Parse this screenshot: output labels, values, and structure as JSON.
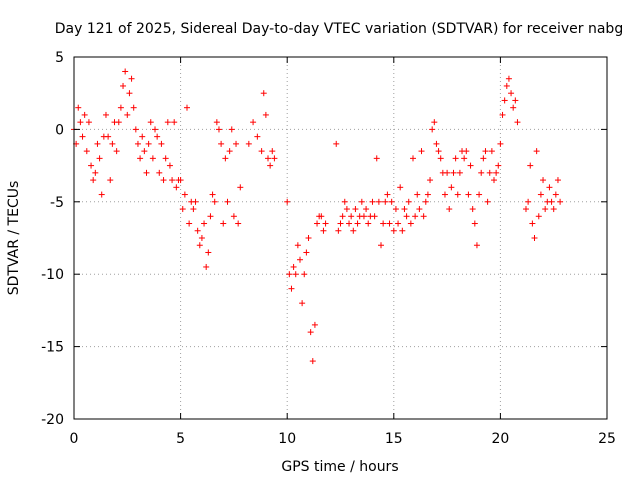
{
  "chart_data": {
    "type": "scatter",
    "title": "Day 121 of 2025, Sidereal Day-to-day VTEC variation (SDTVAR) for receiver nabg",
    "xlabel": "GPS time / hours",
    "ylabel": "SDTVAR / TECUs",
    "xlim": [
      0,
      25
    ],
    "ylim": [
      -20,
      5
    ],
    "xticks": [
      0,
      5,
      10,
      15,
      20,
      25
    ],
    "yticks": [
      -20,
      -15,
      -10,
      -5,
      0,
      5
    ],
    "xtick_labels": [
      "0",
      "5",
      "10",
      "15",
      "20",
      "25"
    ],
    "ytick_labels": [
      "-20",
      "-15",
      "-10",
      "-5",
      "0",
      "5"
    ],
    "grid": true,
    "marker": "+",
    "color": "#ff0000",
    "series": [
      {
        "name": "SDTVAR",
        "x": [
          0.0,
          0.1,
          0.2,
          0.3,
          0.4,
          0.5,
          0.6,
          0.7,
          0.8,
          0.9,
          1.0,
          1.1,
          1.2,
          1.3,
          1.4,
          1.5,
          1.6,
          1.7,
          1.8,
          1.9,
          2.0,
          2.1,
          2.2,
          2.3,
          2.4,
          2.5,
          2.6,
          2.7,
          2.8,
          2.9,
          3.0,
          3.1,
          3.2,
          3.3,
          3.4,
          3.5,
          3.6,
          3.7,
          3.8,
          3.9,
          4.0,
          4.1,
          4.2,
          4.3,
          4.4,
          4.5,
          4.6,
          4.7,
          4.8,
          4.9,
          5.0,
          5.1,
          5.2,
          5.3,
          5.4,
          5.5,
          5.6,
          5.7,
          5.8,
          5.9,
          6.0,
          6.1,
          6.2,
          6.3,
          6.4,
          6.5,
          6.6,
          6.7,
          6.8,
          6.9,
          7.0,
          7.1,
          7.2,
          7.3,
          7.4,
          7.5,
          7.6,
          7.7,
          7.8,
          8.2,
          8.4,
          8.6,
          8.8,
          8.9,
          9.0,
          9.1,
          9.2,
          9.3,
          9.4,
          10.0,
          10.1,
          10.2,
          10.3,
          10.4,
          10.5,
          10.6,
          10.7,
          10.8,
          10.9,
          11.0,
          11.1,
          11.2,
          11.3,
          11.4,
          11.5,
          11.6,
          11.7,
          11.8,
          12.3,
          12.4,
          12.5,
          12.6,
          12.7,
          12.8,
          12.9,
          13.0,
          13.1,
          13.2,
          13.3,
          13.4,
          13.5,
          13.6,
          13.7,
          13.8,
          13.9,
          14.0,
          14.1,
          14.2,
          14.3,
          14.4,
          14.5,
          14.6,
          14.7,
          14.8,
          14.9,
          15.0,
          15.1,
          15.2,
          15.3,
          15.4,
          15.5,
          15.6,
          15.7,
          15.8,
          15.9,
          16.0,
          16.1,
          16.2,
          16.3,
          16.4,
          16.5,
          16.6,
          16.7,
          16.8,
          16.9,
          17.0,
          17.1,
          17.2,
          17.3,
          17.4,
          17.5,
          17.6,
          17.7,
          17.8,
          17.9,
          18.0,
          18.1,
          18.2,
          18.3,
          18.4,
          18.5,
          18.6,
          18.7,
          18.8,
          18.9,
          19.0,
          19.1,
          19.2,
          19.3,
          19.4,
          19.5,
          19.6,
          19.7,
          19.8,
          19.9,
          20.0,
          20.1,
          20.2,
          20.3,
          20.4,
          20.5,
          20.6,
          20.7,
          20.8,
          21.2,
          21.3,
          21.4,
          21.5,
          21.6,
          21.7,
          21.8,
          21.9,
          22.0,
          22.1,
          22.2,
          22.3,
          22.4,
          22.5,
          22.6,
          22.7,
          22.8
        ],
        "y": [
          0.0,
          -1.0,
          1.5,
          0.5,
          -0.5,
          1.0,
          -1.5,
          0.5,
          -2.5,
          -3.5,
          -3.0,
          -1.0,
          -2.0,
          -4.5,
          -0.5,
          1.0,
          -0.5,
          -3.5,
          -1.0,
          0.5,
          -1.5,
          0.5,
          1.5,
          3.0,
          4.0,
          1.0,
          2.5,
          3.5,
          1.5,
          0.0,
          -1.0,
          -2.0,
          -0.5,
          -1.5,
          -3.0,
          -1.0,
          0.5,
          -2.0,
          0.0,
          -0.5,
          -3.0,
          -1.0,
          -3.5,
          -2.0,
          0.5,
          -2.5,
          -3.5,
          0.5,
          -4.0,
          -3.5,
          -3.5,
          -5.5,
          -4.5,
          1.5,
          -6.5,
          -5.0,
          -5.5,
          -5.0,
          -7.0,
          -8.0,
          -7.5,
          -6.5,
          -9.5,
          -8.5,
          -6.0,
          -4.5,
          -5.0,
          0.5,
          0.0,
          -1.0,
          -6.5,
          -2.0,
          -5.0,
          -1.5,
          0.0,
          -6.0,
          -1.0,
          -6.5,
          -4.0,
          -1.0,
          0.5,
          -0.5,
          -1.5,
          2.5,
          1.0,
          -2.0,
          -2.5,
          -1.5,
          -2.0,
          -5.0,
          -10.0,
          -11.0,
          -9.5,
          -10.0,
          -8.0,
          -9.0,
          -12.0,
          -10.0,
          -8.5,
          -7.5,
          -14.0,
          -16.0,
          -13.5,
          -6.5,
          -6.0,
          -6.0,
          -7.0,
          -6.5,
          -1.0,
          -7.0,
          -6.5,
          -6.0,
          -5.0,
          -5.5,
          -6.5,
          -6.0,
          -7.0,
          -5.5,
          -6.5,
          -6.0,
          -5.0,
          -6.0,
          -5.5,
          -6.5,
          -6.0,
          -5.0,
          -6.0,
          -2.0,
          -5.0,
          -8.0,
          -6.5,
          -5.0,
          -4.5,
          -6.5,
          -5.0,
          -7.0,
          -5.5,
          -6.5,
          -4.0,
          -7.0,
          -5.5,
          -6.0,
          -5.0,
          -6.5,
          -2.0,
          -6.0,
          -4.5,
          -5.5,
          -1.5,
          -6.0,
          -5.0,
          -4.5,
          -3.5,
          0.0,
          0.5,
          -1.0,
          -1.5,
          -2.0,
          -3.0,
          -4.5,
          -3.0,
          -5.5,
          -4.0,
          -3.0,
          -2.0,
          -4.5,
          -3.0,
          -1.5,
          -2.0,
          -1.5,
          -4.5,
          -2.5,
          -5.5,
          -6.5,
          -8.0,
          -4.5,
          -3.0,
          -2.0,
          -1.5,
          -5.0,
          -3.0,
          -1.5,
          -3.5,
          -3.0,
          -2.5,
          -1.0,
          1.0,
          2.0,
          3.0,
          3.5,
          2.5,
          1.5,
          2.0,
          0.5,
          -5.5,
          -5.0,
          -2.5,
          -6.5,
          -7.5,
          -1.5,
          -6.0,
          -4.5,
          -3.5,
          -5.5,
          -5.0,
          -4.0,
          -5.0,
          -5.5,
          -4.5,
          -3.5,
          -5.0
        ]
      }
    ]
  }
}
